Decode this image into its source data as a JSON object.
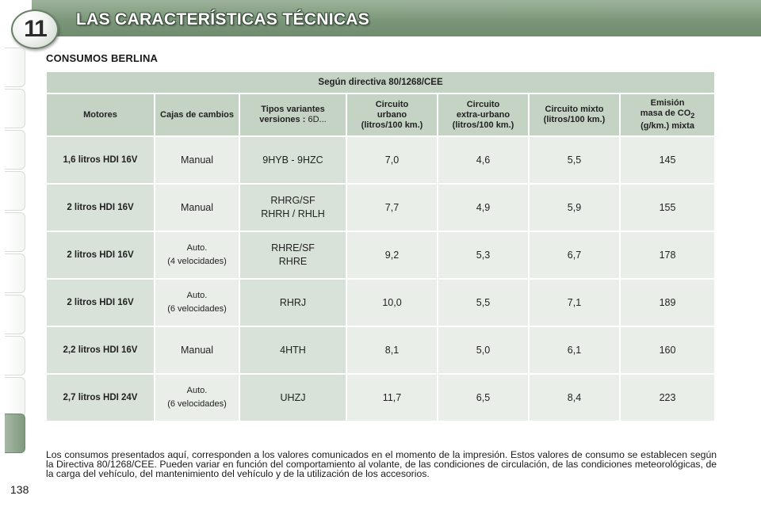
{
  "header": {
    "chapter_number": "11",
    "title": "LAS CARACTERÍSTICAS TÉCNICAS"
  },
  "section_title": "CONSUMOS BERLINA",
  "table": {
    "directive": "Según directiva 80/1268/CEE",
    "headers": {
      "motores": "Motores",
      "cajas_l1": "Cajas",
      "cajas_l2": "de cambios",
      "tipos_l1": "Tipos variantes",
      "tipos_l2_bold": "versiones :",
      "tipos_l2_value": "6D...",
      "urbano_l1": "Circuito",
      "urbano_l2": "urbano",
      "urbano_l3": "(litros/100 km.)",
      "extra_l1": "Circuito",
      "extra_l2": "extra-urbano",
      "extra_l3": "(litros/100 km.)",
      "mixto_l1": "Circuito mixto",
      "mixto_l2": "(litros/100 km.)",
      "emision_l1": "Emisión",
      "emision_l2": "masa de CO",
      "emision_sub": "2",
      "emision_l3": "(g/km.) mixta"
    },
    "rows": [
      {
        "motor": "1,6 litros HDI 16V",
        "caja_l1": "Manual",
        "caja_l2": "",
        "tipo_l1": "9HYB - 9HZC",
        "tipo_l2": "",
        "urbano": "7,0",
        "extra": "4,6",
        "mixto": "5,5",
        "co2": "145"
      },
      {
        "motor": "2 litros HDI 16V",
        "caja_l1": "Manual",
        "caja_l2": "",
        "tipo_l1": "RHRG/SF",
        "tipo_l2": "RHRH / RHLH",
        "urbano": "7,7",
        "extra": "4,9",
        "mixto": "5,9",
        "co2": "155"
      },
      {
        "motor": "2 litros HDI 16V",
        "caja_l1": "Auto.",
        "caja_l2": "(4 velocidades)",
        "tipo_l1": "RHRE/SF",
        "tipo_l2": "RHRE",
        "urbano": "9,2",
        "extra": "5,3",
        "mixto": "6,7",
        "co2": "178"
      },
      {
        "motor": "2 litros HDI 16V",
        "caja_l1": "Auto.",
        "caja_l2": "(6 velocidades)",
        "tipo_l1": "RHRJ",
        "tipo_l2": "",
        "urbano": "10,0",
        "extra": "5,5",
        "mixto": "7,1",
        "co2": "189"
      },
      {
        "motor": "2,2 litros HDI 16V",
        "caja_l1": "Manual",
        "caja_l2": "",
        "tipo_l1": "4HTH",
        "tipo_l2": "",
        "urbano": "8,1",
        "extra": "5,0",
        "mixto": "6,1",
        "co2": "160"
      },
      {
        "motor": "2,7 litros HDI 24V",
        "caja_l1": "Auto.",
        "caja_l2": "(6 velocidades)",
        "tipo_l1": "UHZJ",
        "tipo_l2": "",
        "urbano": "11,7",
        "extra": "6,5",
        "mixto": "8,4",
        "co2": "223"
      }
    ]
  },
  "footnote": "Los consumos presentados aquí, corresponden a los valores comunicados en el momento de la impresión. Estos valores de consumo se establecen según la Directiva 80/1268/CEE. Pueden variar en función del comportamiento al volante, de las condiciones de circulación, de las condiciones meteorológicas, de la carga del vehículo, del mantenimiento del vehículo y de la utilización de los accesorios.",
  "page_number": "138",
  "colors": {
    "header_green": "#7b977a",
    "table_header": "#c5d3c4",
    "table_label": "#d9e2d8",
    "table_value": "#e9efe8"
  }
}
